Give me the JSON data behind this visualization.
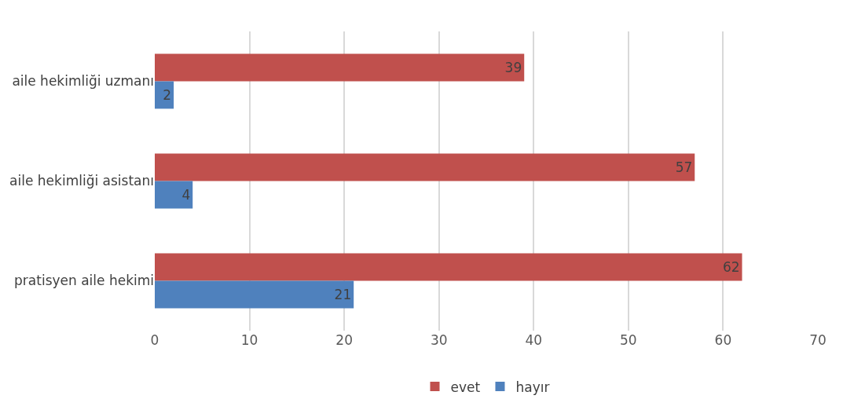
{
  "chart_data": {
    "type": "bar",
    "orientation": "horizontal",
    "categories": [
      "aile hekimliği uzmanı",
      "aile hekimliği asistanı",
      "pratisyen aile hekimi"
    ],
    "series": [
      {
        "name": "evet",
        "color": "#c0504d",
        "values": [
          39,
          57,
          62
        ]
      },
      {
        "name": "hayır",
        "color": "#4f81bd",
        "values": [
          2,
          4,
          21
        ]
      }
    ],
    "xlim": [
      0,
      70
    ],
    "xticks": [
      0,
      10,
      20,
      30,
      40,
      50,
      60,
      70
    ],
    "grid": "x",
    "legend": "bottom",
    "data_labels": true
  }
}
